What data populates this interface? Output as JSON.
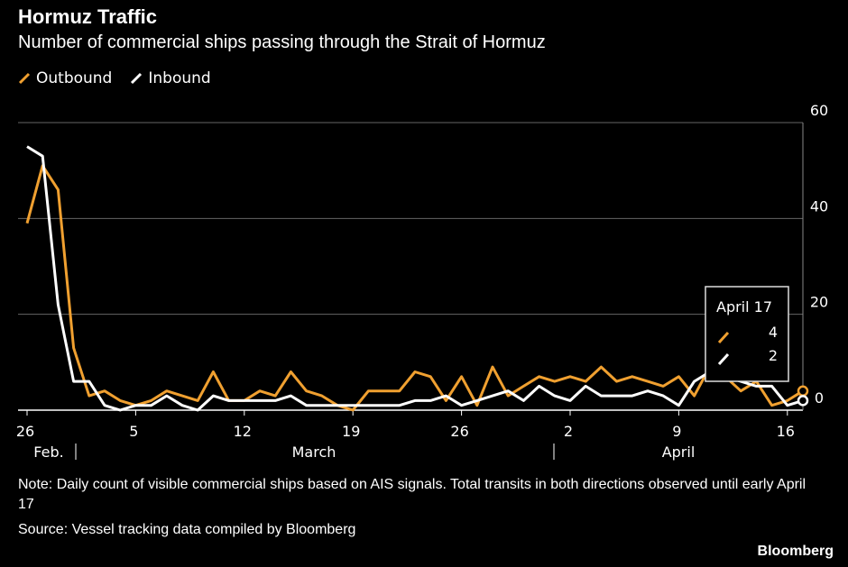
{
  "title": "Hormuz Traffic",
  "subtitle": "Number of commercial ships passing through the Strait of Hormuz",
  "legend": [
    {
      "label": "Outbound",
      "color": "#f0a030"
    },
    {
      "label": "Inbound",
      "color": "#ffffff"
    }
  ],
  "tooltip": {
    "date": "April 17",
    "outbound": "4",
    "inbound": "2"
  },
  "note": "Note: Daily count of visible commercial ships based on AIS signals. Total transits in both directions observed until early April 17",
  "source": "Source: Vessel tracking data compiled by Bloomberg",
  "brand": "Bloomberg",
  "chart_data": {
    "type": "line",
    "ylim": [
      0,
      60
    ],
    "y_ticks": [
      "0",
      "20",
      "40",
      "60"
    ],
    "x_ticks": [
      "26",
      "5",
      "12",
      "19",
      "26",
      "2",
      "9",
      "16"
    ],
    "month_labels": [
      "Feb.",
      "March",
      "April"
    ],
    "x": [
      "Feb 26",
      "Feb 27",
      "Feb 28",
      "Mar 1",
      "Mar 2",
      "Mar 3",
      "Mar 4",
      "Mar 5",
      "Mar 6",
      "Mar 7",
      "Mar 8",
      "Mar 9",
      "Mar 10",
      "Mar 11",
      "Mar 12",
      "Mar 13",
      "Mar 14",
      "Mar 15",
      "Mar 16",
      "Mar 17",
      "Mar 18",
      "Mar 19",
      "Mar 20",
      "Mar 21",
      "Mar 22",
      "Mar 23",
      "Mar 24",
      "Mar 25",
      "Mar 26",
      "Mar 27",
      "Mar 28",
      "Mar 29",
      "Mar 30",
      "Mar 31",
      "Apr 1",
      "Apr 2",
      "Apr 3",
      "Apr 4",
      "Apr 5",
      "Apr 6",
      "Apr 7",
      "Apr 8",
      "Apr 9",
      "Apr 10",
      "Apr 11",
      "Apr 12",
      "Apr 13",
      "Apr 14",
      "Apr 15",
      "Apr 16",
      "Apr 17"
    ],
    "series": [
      {
        "name": "Outbound",
        "color": "#f0a030",
        "values": [
          39,
          51,
          46,
          13,
          3,
          4,
          2,
          1,
          2,
          4,
          3,
          2,
          8,
          2,
          2,
          4,
          3,
          8,
          4,
          3,
          1,
          0,
          4,
          4,
          4,
          8,
          7,
          2,
          7,
          1,
          9,
          3,
          5,
          7,
          6,
          7,
          6,
          9,
          6,
          7,
          6,
          5,
          7,
          3,
          9,
          7,
          4,
          6,
          1,
          2,
          4
        ]
      },
      {
        "name": "Inbound",
        "color": "#ffffff",
        "values": [
          55,
          53,
          22,
          6,
          6,
          1,
          0,
          1,
          1,
          3,
          1,
          0,
          3,
          2,
          2,
          2,
          2,
          3,
          1,
          1,
          1,
          1,
          1,
          1,
          1,
          2,
          2,
          3,
          1,
          2,
          3,
          4,
          2,
          5,
          3,
          2,
          5,
          3,
          3,
          3,
          4,
          3,
          1,
          6,
          8,
          7,
          6,
          5,
          5,
          1,
          2
        ]
      }
    ]
  }
}
